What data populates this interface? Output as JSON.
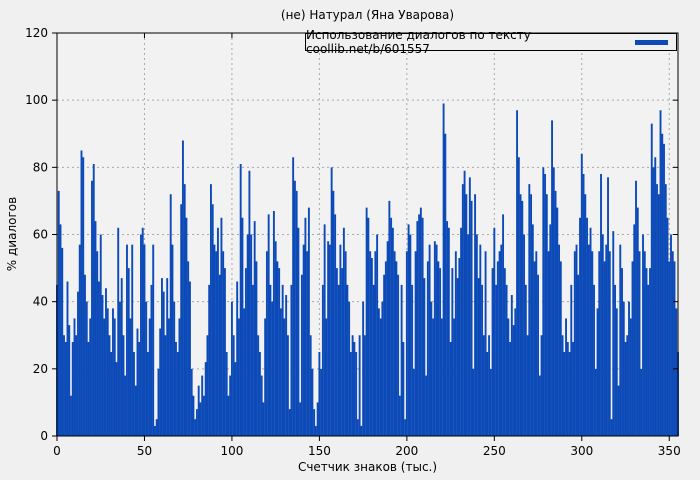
{
  "chart_data": {
    "type": "bar",
    "style": "impulses",
    "title": "(не) Натурал (Яна Уварова)",
    "legend": "Использование диалогов по тексту coollib.net/b/601557",
    "xlabel": "Счетчик знаков (тыс.)",
    "ylabel": "% диалогов",
    "xlim": [
      0,
      355
    ],
    "ylim": [
      0,
      120
    ],
    "x_ticks": [
      0,
      50,
      100,
      150,
      200,
      250,
      300,
      350
    ],
    "y_ticks": [
      0,
      20,
      40,
      60,
      80,
      100,
      120
    ],
    "grid": true,
    "legend_position": "top-right-inside-box",
    "bar_color": "#0c4ab8",
    "grid_color": "#a8a8a8",
    "plot_bg": "#f2f2f2",
    "x_start": 0,
    "x_step": 1,
    "values": [
      45,
      73,
      63,
      56,
      30,
      28,
      46,
      33,
      12,
      28,
      35,
      30,
      43,
      57,
      85,
      83,
      48,
      40,
      28,
      35,
      76,
      81,
      64,
      55,
      46,
      60,
      42,
      35,
      44,
      38,
      30,
      25,
      38,
      35,
      22,
      62,
      40,
      47,
      30,
      18,
      57,
      50,
      35,
      57,
      25,
      15,
      32,
      28,
      60,
      62,
      57,
      40,
      25,
      35,
      45,
      57,
      3,
      5,
      20,
      32,
      47,
      43,
      30,
      47,
      35,
      72,
      57,
      40,
      28,
      25,
      35,
      69,
      88,
      75,
      65,
      52,
      46,
      20,
      12,
      5,
      8,
      15,
      10,
      18,
      12,
      22,
      30,
      45,
      75,
      69,
      57,
      55,
      62,
      48,
      65,
      55,
      50,
      25,
      12,
      18,
      40,
      30,
      22,
      46,
      35,
      81,
      65,
      38,
      50,
      60,
      79,
      60,
      45,
      64,
      52,
      30,
      25,
      18,
      10,
      35,
      55,
      66,
      45,
      40,
      67,
      58,
      52,
      50,
      38,
      45,
      35,
      42,
      30,
      8,
      45,
      83,
      76,
      73,
      62,
      10,
      48,
      57,
      65,
      55,
      68,
      30,
      20,
      8,
      3,
      10,
      25,
      20,
      45,
      63,
      35,
      58,
      57,
      80,
      73,
      66,
      50,
      45,
      57,
      50,
      62,
      55,
      45,
      40,
      25,
      30,
      28,
      25,
      5,
      30,
      3,
      40,
      30,
      68,
      65,
      55,
      53,
      45,
      55,
      60,
      38,
      35,
      40,
      48,
      52,
      58,
      70,
      65,
      62,
      55,
      52,
      48,
      12,
      45,
      28,
      5,
      55,
      63,
      60,
      45,
      20,
      55,
      64,
      66,
      68,
      65,
      47,
      18,
      52,
      57,
      40,
      35,
      58,
      57,
      52,
      50,
      35,
      99,
      90,
      64,
      62,
      28,
      50,
      35,
      55,
      47,
      53,
      62,
      75,
      79,
      72,
      60,
      77,
      70,
      20,
      72,
      60,
      47,
      57,
      45,
      30,
      55,
      25,
      30,
      20,
      50,
      62,
      45,
      52,
      55,
      57,
      66,
      50,
      45,
      35,
      28,
      42,
      33,
      38,
      97,
      83,
      72,
      70,
      60,
      45,
      30,
      75,
      72,
      63,
      52,
      55,
      48,
      18,
      30,
      80,
      78,
      72,
      55,
      63,
      94,
      80,
      73,
      68,
      57,
      52,
      30,
      25,
      35,
      28,
      25,
      45,
      28,
      55,
      57,
      48,
      65,
      84,
      78,
      72,
      65,
      57,
      62,
      55,
      45,
      20,
      38,
      55,
      78,
      60,
      52,
      57,
      77,
      55,
      5,
      61,
      45,
      38,
      15,
      57,
      50,
      40,
      28,
      30,
      40,
      35,
      52,
      63,
      76,
      68,
      55,
      20,
      60,
      55,
      50,
      45,
      50,
      93,
      80,
      83,
      75,
      72,
      97,
      90,
      87,
      75,
      65,
      52,
      60,
      55,
      52,
      38,
      25
    ]
  }
}
